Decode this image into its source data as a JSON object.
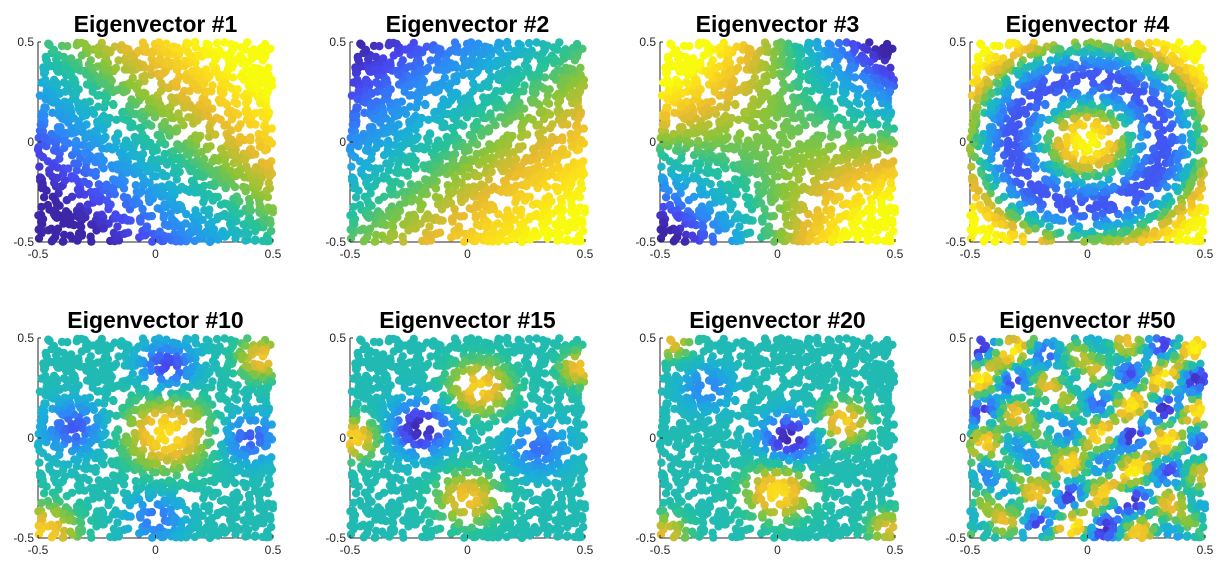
{
  "chart_data": {
    "type": "scatter",
    "panels": [
      {
        "title": "Eigenvector #1",
        "xlim": [
          -0.5,
          0.5
        ],
        "ylim": [
          -0.5,
          0.5
        ],
        "xticks": [
          "-0.5",
          "0",
          "0.5"
        ],
        "yticks": [
          "-0.5",
          "0",
          "0.5"
        ]
      },
      {
        "title": "Eigenvector #2",
        "xlim": [
          -0.5,
          0.5
        ],
        "ylim": [
          -0.5,
          0.5
        ],
        "xticks": [
          "-0.5",
          "0",
          "0.5"
        ],
        "yticks": [
          "-0.5",
          "0",
          "0.5"
        ]
      },
      {
        "title": "Eigenvector #3",
        "xlim": [
          -0.5,
          0.5
        ],
        "ylim": [
          -0.5,
          0.5
        ],
        "xticks": [
          "-0.5",
          "0",
          "0.5"
        ],
        "yticks": [
          "-0.5",
          "0",
          "0.5"
        ]
      },
      {
        "title": "Eigenvector #4",
        "xlim": [
          -0.5,
          0.5
        ],
        "ylim": [
          -0.5,
          0.5
        ],
        "xticks": [
          "-0.5",
          "0",
          "0.5"
        ],
        "yticks": [
          "-0.5",
          "0",
          "0.5"
        ]
      },
      {
        "title": "Eigenvector #10",
        "xlim": [
          -0.5,
          0.5
        ],
        "ylim": [
          -0.5,
          0.5
        ],
        "xticks": [
          "-0.5",
          "0",
          "0.5"
        ],
        "yticks": [
          "-0.5",
          "0",
          "0.5"
        ]
      },
      {
        "title": "Eigenvector #15",
        "xlim": [
          -0.5,
          0.5
        ],
        "ylim": [
          -0.5,
          0.5
        ],
        "xticks": [
          "-0.5",
          "0",
          "0.5"
        ],
        "yticks": [
          "-0.5",
          "0",
          "0.5"
        ]
      },
      {
        "title": "Eigenvector #20",
        "xlim": [
          -0.5,
          0.5
        ],
        "ylim": [
          -0.5,
          0.5
        ],
        "xticks": [
          "-0.5",
          "0",
          "0.5"
        ],
        "yticks": [
          "-0.5",
          "0",
          "0.5"
        ]
      },
      {
        "title": "Eigenvector #50",
        "xlim": [
          -0.5,
          0.5
        ],
        "ylim": [
          -0.5,
          0.5
        ],
        "xticks": [
          "-0.5",
          "0",
          "0.5"
        ],
        "yticks": [
          "-0.5",
          "0",
          "0.5"
        ]
      }
    ],
    "colormap": [
      "#3e26a8",
      "#4748f0",
      "#2e87f7",
      "#1aafd8",
      "#25c29a",
      "#8dc437",
      "#e8ba30",
      "#fbd91e",
      "#f9fb0e"
    ],
    "grid": false,
    "legend": "none"
  }
}
